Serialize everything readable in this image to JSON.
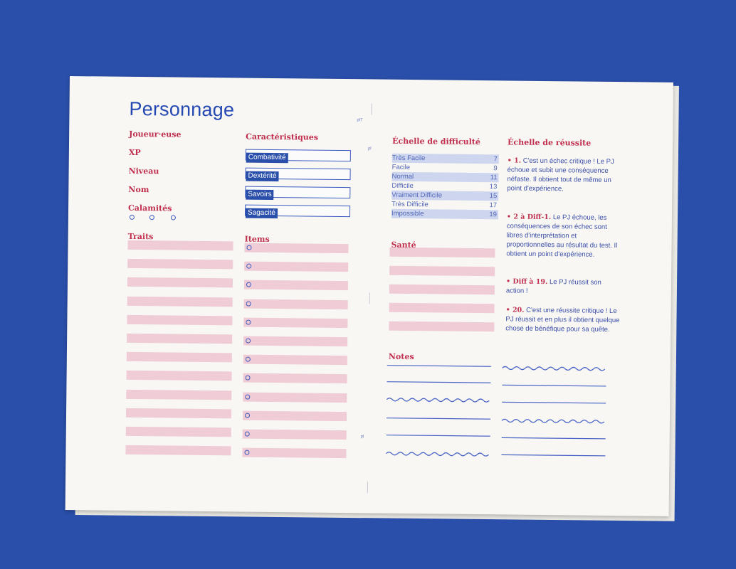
{
  "sheet": {
    "title": "Personnage",
    "left_page": {
      "player_fields": [
        "Joueur·euse",
        "XP",
        "Niveau",
        "Nom",
        "Calamités"
      ],
      "calamity_slots": 3,
      "characteristics_title": "Caractéristiques",
      "characteristics": [
        "Combativité",
        "Dextérité",
        "Savoirs",
        "Sagacité"
      ],
      "traits_title": "Traits",
      "traits_lines": 12,
      "items_title": "Items",
      "items_lines": 12,
      "fold_marks": [
        "pl7",
        "pl",
        "pl"
      ]
    },
    "right_page": {
      "difficulty_title": "Échelle de difficulté",
      "difficulty": [
        {
          "label": "Très Facile",
          "value": "7"
        },
        {
          "label": "Facile",
          "value": "9"
        },
        {
          "label": "Normal",
          "value": "11"
        },
        {
          "label": "Difficile",
          "value": "13"
        },
        {
          "label": "Vraiment Difficile",
          "value": "15"
        },
        {
          "label": "Très Difficile",
          "value": "17"
        },
        {
          "label": "Impossible",
          "value": "19"
        }
      ],
      "health_title": "Santé",
      "health_lines": 5,
      "notes_title": "Notes",
      "success_title": "Échelle de réussite",
      "success": [
        {
          "lead": "• 1.",
          "text": " C'est un échec critique ! Le PJ échoue et subit une conséquence néfaste. Il obtient tout de même un point d'expérience."
        },
        {
          "lead": "• 2 à Diff-1.",
          "text": " Le PJ échoue, les conséquences de son échec sont libres d'interprétation et proportionnelles au résultat du test. Il obtient un point d'expérience."
        },
        {
          "lead": "• Diff à 19.",
          "text": " Le PJ réussit son action !"
        },
        {
          "lead": "• 20.",
          "text": " C'est une réussite critique ! Le PJ réussit et en plus il obtient quelque chose de bénéfique pour sa quête."
        }
      ]
    },
    "colors": {
      "background": "#2a4faa",
      "paper": "#f8f7f4",
      "accent_red": "#c0304e",
      "accent_blue": "#2549b2",
      "bar_pink": "#f0ccd6",
      "row_blue": "#cdd6ee"
    }
  }
}
